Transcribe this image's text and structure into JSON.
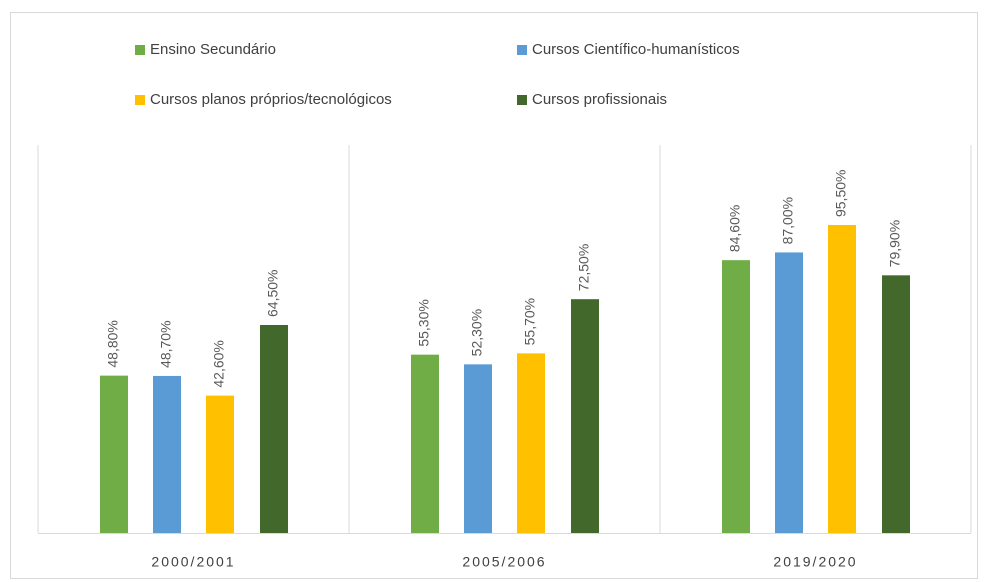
{
  "chart_data": {
    "type": "bar",
    "categories": [
      "2000/2001",
      "2005/2006",
      "2019/2020"
    ],
    "series": [
      {
        "name": "Ensino Secundário",
        "color": "#70ad47",
        "values": [
          48.8,
          55.3,
          84.6
        ],
        "value_labels": [
          "48,80%",
          "55,30%",
          "84,60%"
        ]
      },
      {
        "name": "Cursos Científico-humanísticos",
        "color": "#5b9bd5",
        "values": [
          48.7,
          52.3,
          87.0
        ],
        "value_labels": [
          "48,70%",
          "52,30%",
          "87,00%"
        ]
      },
      {
        "name": "Cursos planos próprios/tecnológicos",
        "color": "#ffc000",
        "values": [
          42.6,
          55.7,
          95.5
        ],
        "value_labels": [
          "42,60%",
          "55,70%",
          "95,50%"
        ]
      },
      {
        "name": "Cursos profissionais",
        "color": "#43682b",
        "values": [
          64.5,
          72.5,
          79.9
        ],
        "value_labels": [
          "64,50%",
          "72,50%",
          "79,90%"
        ]
      }
    ]
  }
}
